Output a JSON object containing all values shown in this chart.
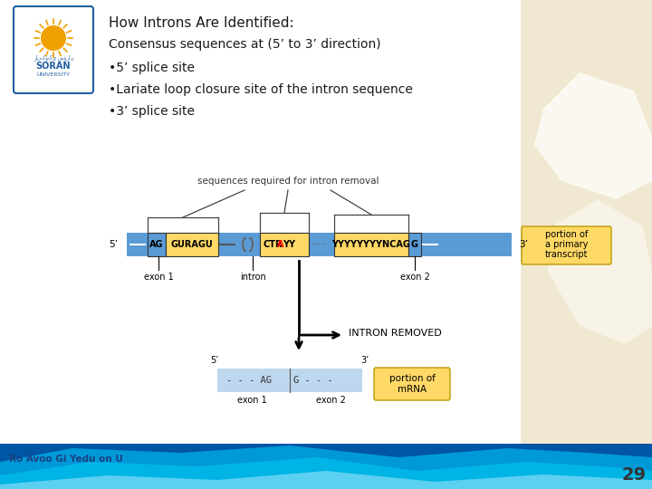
{
  "title": "How Introns Are Identified:",
  "subtitle": "Consensus sequences at (5’ to 3’ direction)",
  "bullet1": "•5’ splice site",
  "bullet2": "•Lariate loop closure site of the intron sequence",
  "bullet3": "•3’ splice site",
  "bg_color": "#ffffff",
  "beige_color": "#f0e8d0",
  "blue_strand": "#5b9bd5",
  "yellow_box": "#ffd966",
  "light_blue_strand": "#bdd7ee",
  "wave1": "#0070c0",
  "wave2": "#00b0f0",
  "wave3": "#87ceeb",
  "text_color": "#1a1a1a",
  "bracket_color": "#444444",
  "red_color": "#ff0000",
  "page_num": "29",
  "footer": "Ro Avoo Gi Yedu on U"
}
